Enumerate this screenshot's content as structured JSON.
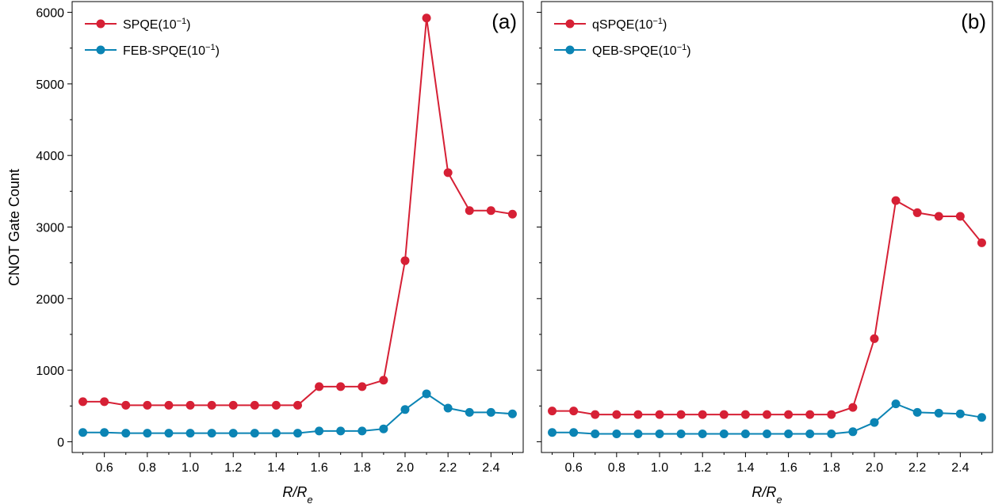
{
  "ylabel": "CNOT Gate Count",
  "colors": {
    "red": "#d62035",
    "blue": "#0b84b4"
  },
  "chart_data": [
    {
      "type": "line",
      "panel_label": "(a)",
      "xlabel_base": "R/R",
      "xlabel_sub": "e",
      "ylabel": "CNOT Gate Count",
      "xlim": [
        0.45,
        2.55
      ],
      "ylim": [
        -150,
        6150
      ],
      "xticks": [
        0.6,
        0.8,
        1.0,
        1.2,
        1.4,
        1.6,
        1.8,
        2.0,
        2.2,
        2.4
      ],
      "xtick_labels": [
        "0.6",
        "0.8",
        "1.0",
        "1.2",
        "1.4",
        "1.6",
        "1.8",
        "2.0",
        "2.2",
        "2.4"
      ],
      "yticks": [
        0,
        1000,
        2000,
        3000,
        4000,
        5000,
        6000
      ],
      "ytick_labels": [
        "0",
        "1000",
        "2000",
        "3000",
        "4000",
        "5000",
        "6000"
      ],
      "legend_position": "top-left",
      "x": [
        0.5,
        0.6,
        0.7,
        0.8,
        0.9,
        1.0,
        1.1,
        1.2,
        1.3,
        1.4,
        1.5,
        1.6,
        1.7,
        1.8,
        1.9,
        2.0,
        2.1,
        2.2,
        2.3,
        2.4,
        2.5
      ],
      "series": [
        {
          "name_base": "SPQE(10",
          "name_exp": "−1",
          "name_close": ")",
          "color": "#d62035",
          "values": [
            560,
            560,
            510,
            510,
            510,
            510,
            510,
            510,
            510,
            510,
            510,
            770,
            770,
            770,
            860,
            2530,
            5920,
            3760,
            3230,
            3230,
            3180
          ]
        },
        {
          "name_base": "FEB-SPQE(10",
          "name_exp": "−1",
          "name_close": ")",
          "color": "#0b84b4",
          "values": [
            130,
            130,
            120,
            120,
            120,
            120,
            120,
            120,
            120,
            120,
            120,
            150,
            150,
            150,
            180,
            450,
            670,
            470,
            410,
            410,
            390
          ]
        }
      ]
    },
    {
      "type": "line",
      "panel_label": "(b)",
      "xlabel_base": "R/R",
      "xlabel_sub": "e",
      "ylabel": "",
      "xlim": [
        0.45,
        2.55
      ],
      "ylim": [
        -150,
        6150
      ],
      "xticks": [
        0.6,
        0.8,
        1.0,
        1.2,
        1.4,
        1.6,
        1.8,
        2.0,
        2.2,
        2.4
      ],
      "xtick_labels": [
        "0.6",
        "0.8",
        "1.0",
        "1.2",
        "1.4",
        "1.6",
        "1.8",
        "2.0",
        "2.2",
        "2.4"
      ],
      "yticks": [
        0,
        1000,
        2000,
        3000,
        4000,
        5000,
        6000
      ],
      "ytick_labels": [],
      "legend_position": "top-left",
      "x": [
        0.5,
        0.6,
        0.7,
        0.8,
        0.9,
        1.0,
        1.1,
        1.2,
        1.3,
        1.4,
        1.5,
        1.6,
        1.7,
        1.8,
        1.9,
        2.0,
        2.1,
        2.2,
        2.3,
        2.4,
        2.5
      ],
      "series": [
        {
          "name_base": "qSPQE(10",
          "name_exp": "−1",
          "name_close": ")",
          "color": "#d62035",
          "values": [
            430,
            430,
            380,
            380,
            380,
            380,
            380,
            380,
            380,
            380,
            380,
            380,
            380,
            380,
            480,
            1440,
            3370,
            3200,
            3150,
            3150,
            2780
          ]
        },
        {
          "name_base": "QEB-SPQE(10",
          "name_exp": "−1",
          "name_close": ")",
          "color": "#0b84b4",
          "values": [
            130,
            130,
            110,
            110,
            110,
            110,
            110,
            110,
            110,
            110,
            110,
            110,
            110,
            110,
            140,
            270,
            530,
            410,
            400,
            390,
            340
          ]
        }
      ]
    }
  ]
}
